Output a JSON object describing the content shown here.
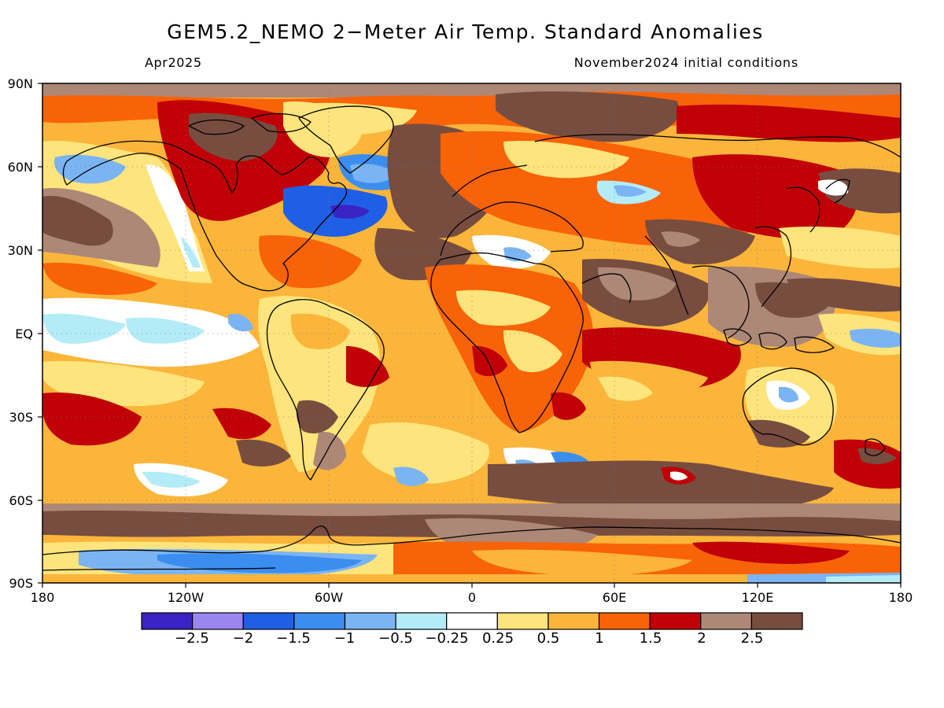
{
  "header": {
    "title": "GEM5.2_NEMO 2−Meter Air Temp. Standard Anomalies",
    "valid_month": "Apr2025",
    "init_conditions": "November2024 initial conditions"
  },
  "axes": {
    "lat_labels": [
      "90N",
      "60N",
      "30N",
      "EQ",
      "30S",
      "60S",
      "90S"
    ],
    "lon_labels": [
      "180",
      "120W",
      "60W",
      "0",
      "60E",
      "120E",
      "180"
    ]
  },
  "colorbar": {
    "labels": [
      "−2.5",
      "−2",
      "−1.5",
      "−1",
      "−0.5",
      "−0.25",
      "0.25",
      "0.5",
      "1",
      "1.5",
      "2",
      "2.5"
    ],
    "colors": [
      "#3a23c4",
      "#9b86f0",
      "#1e5fe6",
      "#3b8ef0",
      "#7bb4f3",
      "#b3ecf7",
      "#ffffff",
      "#fde47c",
      "#fbb53a",
      "#f86308",
      "#c00006",
      "#ad8877",
      "#774d40"
    ]
  },
  "map_colors": {
    "ocean_base": "#fbb53a",
    "land_line": "#000000"
  }
}
